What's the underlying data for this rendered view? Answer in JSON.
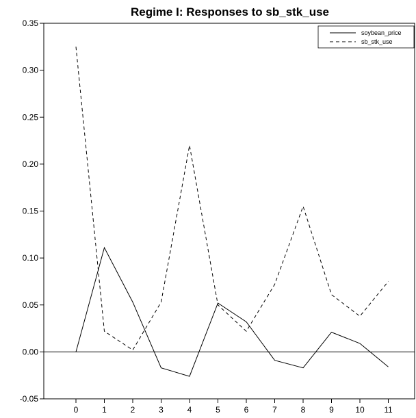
{
  "chart_data": {
    "type": "line",
    "title": "Regime I: Responses to sb_stk_use",
    "xlabel": "",
    "ylabel": "",
    "x": [
      0,
      1,
      2,
      3,
      4,
      5,
      6,
      7,
      8,
      9,
      10,
      11
    ],
    "ylim": [
      -0.05,
      0.35
    ],
    "yticks": [
      "-0.05",
      "0.00",
      "0.05",
      "0.10",
      "0.15",
      "0.20",
      "0.25",
      "0.30",
      "0.35"
    ],
    "xticks": [
      "0",
      "1",
      "2",
      "3",
      "4",
      "5",
      "6",
      "7",
      "8",
      "9",
      "10",
      "11"
    ],
    "series": [
      {
        "name": "soybean_price",
        "style": "solid",
        "color": "#000000",
        "values": [
          0.0,
          0.111,
          0.053,
          -0.017,
          -0.026,
          0.052,
          0.032,
          -0.009,
          -0.017,
          0.021,
          0.009,
          -0.016
        ]
      },
      {
        "name": "sb_stk_use",
        "style": "dashed",
        "color": "#000000",
        "values": [
          0.325,
          0.022,
          0.002,
          0.053,
          0.22,
          0.05,
          0.022,
          0.072,
          0.155,
          0.061,
          0.038,
          0.075
        ]
      }
    ],
    "zero_line": true,
    "grid": false,
    "legend_position": "top-right"
  }
}
